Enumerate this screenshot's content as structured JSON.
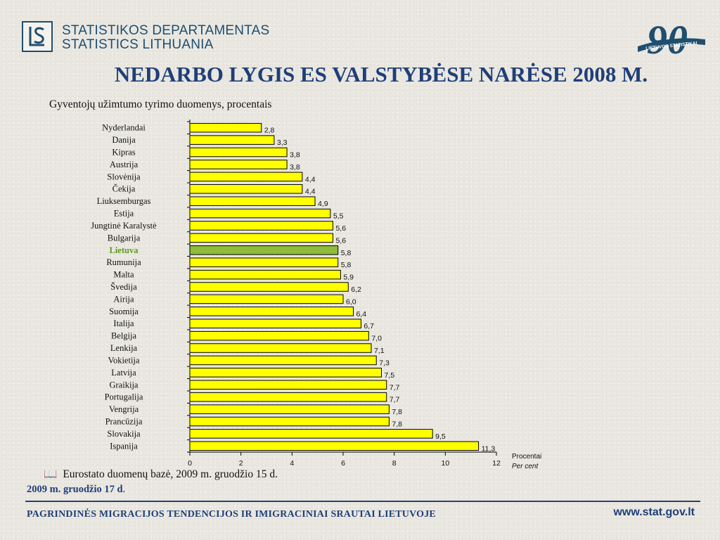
{
  "header": {
    "org_line1": "STATISTIKOS DEPARTAMENTAS",
    "org_line2": "STATISTICS LITHUANIA",
    "anniversary_number": "90",
    "anniversary_ribbon": "LIETUVOS STATISTIKAI"
  },
  "title": "NEDARBO LYGIS  ES VALSTYBĖSE NARĖSE 2008 M.",
  "subtitle": "Gyventojų užimtumo tyrimo duomenys, procentais",
  "chart_data": {
    "type": "bar",
    "orientation": "horizontal",
    "title": "NEDARBO LYGIS  ES VALSTYBĖSE NARĖSE 2008 M.",
    "subtitle": "Gyventojų užimtumo tyrimo duomenys, procentais",
    "categories": [
      "Nyderlandai",
      "Danija",
      "Kipras",
      "Austrija",
      "Slovėnija",
      "Čekija",
      "Liuksemburgas",
      "Estija",
      "Jungtinė Karalystė",
      "Bulgarija",
      "Lietuva",
      "Rumunija",
      "Malta",
      "Švedija",
      "Airija",
      "Suomija",
      "Italija",
      "Belgija",
      "Lenkija",
      "Vokietija",
      "Latvija",
      "Graikija",
      "Portugalija",
      "Vengrija",
      "Prancūzija",
      "Slovakija",
      "Ispanija"
    ],
    "values": [
      2.8,
      3.3,
      3.8,
      3.8,
      4.4,
      4.4,
      4.9,
      5.5,
      5.6,
      5.6,
      5.8,
      5.8,
      5.9,
      6.2,
      6.0,
      6.4,
      6.7,
      7.0,
      7.1,
      7.3,
      7.5,
      7.7,
      7.7,
      7.8,
      7.8,
      9.5,
      11.3
    ],
    "value_labels": [
      "2,8",
      "3,3",
      "3,8",
      "3,8",
      "4,4",
      "4,4",
      "4,9",
      "5,5",
      "5,6",
      "5,6",
      "5,8",
      "5,8",
      "5,9",
      "6,2",
      "6,0",
      "6,4",
      "6,7",
      "7,0",
      "7,1",
      "7,3",
      "7,5",
      "7,7",
      "7,7",
      "7,8",
      "7,8",
      "9,5",
      "11,3"
    ],
    "highlight": "Lietuva",
    "xlim": [
      0,
      12
    ],
    "xticks": [
      0,
      2,
      4,
      6,
      8,
      10,
      12
    ],
    "xlabel": "Procentai",
    "xlabel_en": "Per cent",
    "grid": false,
    "bar_color": "#ffff00",
    "highlight_color": "#8fbc3a",
    "highlight_label_color": "#5f9a1e"
  },
  "source": "Eurostato duomenų bazė, 2009 m. gruodžio 15 d.",
  "date": "2009 m. gruodžio 17 d",
  "date_suffix": ".",
  "footer": {
    "left": "PAGRINDINĖS MIGRACIJOS TENDENCIJOS IR IMIGRACINIAI SRAUTAI LIETUVOJE",
    "right": "www.stat.gov.lt"
  }
}
